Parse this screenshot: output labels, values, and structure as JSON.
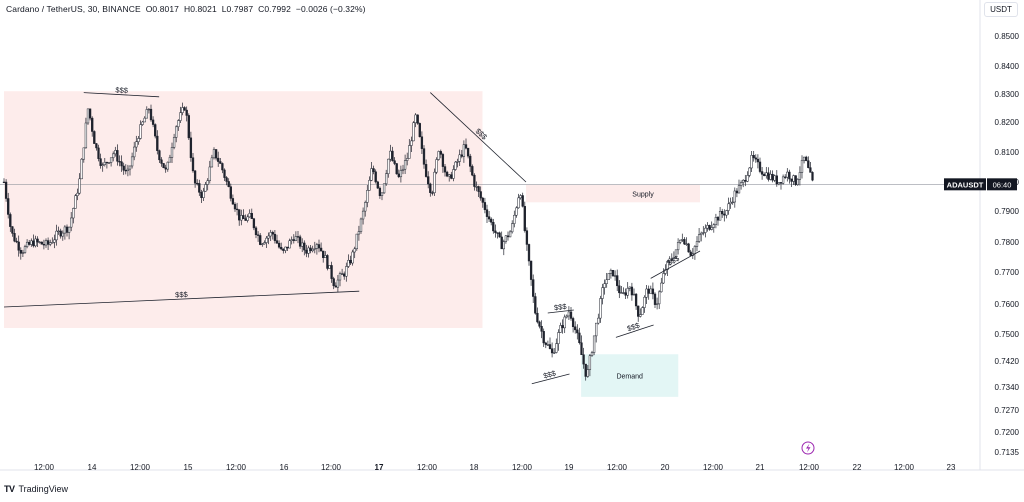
{
  "header": {
    "symbol": "Cardano / TetherUS, 30, BINANCE",
    "open": "O0.8017",
    "high": "H0.8021",
    "low": "L0.7987",
    "close": "C0.7992",
    "change": "−0.0026 (−0.32%)"
  },
  "unit_button": "USDT",
  "brand": {
    "logo": "TV",
    "name": "TradingView"
  },
  "price_tag": {
    "symbol": "ADAUSDT",
    "time": "06:40",
    "price": 0.7992
  },
  "chart_data": {
    "type": "candlestick",
    "ylim": [
      0.7135,
      0.85
    ],
    "y_ticks": [
      "0.8500",
      "0.8400",
      "0.8300",
      "0.8200",
      "0.8100",
      "0.8000",
      "0.7900",
      "0.7800",
      "0.7700",
      "0.7600",
      "0.7500",
      "0.7420",
      "0.7340",
      "0.7270",
      "0.7200",
      "0.7135"
    ],
    "x_ticks": [
      "12:00",
      "14",
      "12:00",
      "15",
      "12:00",
      "16",
      "12:00",
      "17",
      "12:00",
      "18",
      "12:00",
      "19",
      "12:00",
      "20",
      "12:00",
      "21",
      "12:00",
      "22",
      "12:00",
      "23"
    ],
    "bold_x_ticks": [
      "17"
    ],
    "price_path": [
      [
        0,
        0.8
      ],
      [
        5,
        0.783
      ],
      [
        12,
        0.777
      ],
      [
        20,
        0.78
      ],
      [
        30,
        0.779
      ],
      [
        38,
        0.783
      ],
      [
        45,
        0.785
      ],
      [
        52,
        0.8
      ],
      [
        58,
        0.825
      ],
      [
        63,
        0.812
      ],
      [
        68,
        0.805
      ],
      [
        76,
        0.81
      ],
      [
        85,
        0.802
      ],
      [
        92,
        0.815
      ],
      [
        100,
        0.825
      ],
      [
        106,
        0.81
      ],
      [
        112,
        0.803
      ],
      [
        118,
        0.818
      ],
      [
        125,
        0.826
      ],
      [
        131,
        0.8
      ],
      [
        137,
        0.795
      ],
      [
        145,
        0.81
      ],
      [
        150,
        0.805
      ],
      [
        157,
        0.795
      ],
      [
        163,
        0.787
      ],
      [
        170,
        0.788
      ],
      [
        177,
        0.78
      ],
      [
        185,
        0.783
      ],
      [
        192,
        0.776
      ],
      [
        200,
        0.782
      ],
      [
        208,
        0.777
      ],
      [
        216,
        0.78
      ],
      [
        222,
        0.774
      ],
      [
        228,
        0.766
      ],
      [
        235,
        0.77
      ],
      [
        240,
        0.775
      ],
      [
        248,
        0.79
      ],
      [
        254,
        0.805
      ],
      [
        260,
        0.795
      ],
      [
        266,
        0.81
      ],
      [
        272,
        0.801
      ],
      [
        278,
        0.808
      ],
      [
        284,
        0.822
      ],
      [
        290,
        0.805
      ],
      [
        295,
        0.796
      ],
      [
        300,
        0.812
      ],
      [
        306,
        0.8
      ],
      [
        312,
        0.806
      ],
      [
        318,
        0.812
      ],
      [
        324,
        0.8
      ],
      [
        330,
        0.793
      ],
      [
        336,
        0.786
      ],
      [
        343,
        0.779
      ],
      [
        350,
        0.784
      ],
      [
        356,
        0.798
      ],
      [
        360,
        0.78
      ],
      [
        366,
        0.758
      ],
      [
        372,
        0.749
      ],
      [
        378,
        0.744
      ],
      [
        384,
        0.752
      ],
      [
        390,
        0.758
      ],
      [
        396,
        0.748
      ],
      [
        402,
        0.737
      ],
      [
        408,
        0.752
      ],
      [
        414,
        0.767
      ],
      [
        420,
        0.77
      ],
      [
        426,
        0.762
      ],
      [
        432,
        0.766
      ],
      [
        438,
        0.756
      ],
      [
        444,
        0.765
      ],
      [
        450,
        0.76
      ],
      [
        456,
        0.771
      ],
      [
        462,
        0.776
      ],
      [
        468,
        0.782
      ],
      [
        474,
        0.776
      ],
      [
        480,
        0.782
      ],
      [
        486,
        0.785
      ],
      [
        492,
        0.788
      ],
      [
        498,
        0.79
      ],
      [
        504,
        0.796
      ],
      [
        510,
        0.8
      ],
      [
        516,
        0.808
      ],
      [
        522,
        0.804
      ],
      [
        528,
        0.802
      ],
      [
        534,
        0.8
      ],
      [
        540,
        0.803
      ],
      [
        546,
        0.8
      ],
      [
        552,
        0.808
      ],
      [
        558,
        0.799
      ]
    ],
    "zones": [
      {
        "name": "range-zone",
        "x_from": 0,
        "x_to": 330,
        "y_top": 0.831,
        "y_bottom": 0.752,
        "color": "#fdeceb",
        "label": ""
      },
      {
        "name": "supply-zone",
        "x_from": 360,
        "x_to": 480,
        "y_top": 0.799,
        "y_bottom": 0.793,
        "color": "#fdeceb",
        "label": "Supply"
      },
      {
        "name": "demand-zone",
        "x_from": 398,
        "x_to": 465,
        "y_top": 0.744,
        "y_bottom": 0.731,
        "color": "#e3f6f5",
        "label": "Demand"
      }
    ],
    "trendlines": [
      {
        "name": "lower-range-liquidity-line",
        "x1": 0,
        "y1": 0.759,
        "x2": 245,
        "y2": 0.764,
        "label": "$$$"
      },
      {
        "name": "top-liquidity-line",
        "x1": 55,
        "y1": 0.8305,
        "x2": 107,
        "y2": 0.829,
        "label": "$$$"
      },
      {
        "name": "descending-liquidity-line",
        "x1": 294,
        "y1": 0.8305,
        "x2": 360,
        "y2": 0.8,
        "label": "$$$"
      },
      {
        "name": "pocket-liquidity-top",
        "x1": 375,
        "y1": 0.757,
        "x2": 393,
        "y2": 0.758,
        "label": "$$$"
      },
      {
        "name": "pocket-liquidity-bottom",
        "x1": 364,
        "y1": 0.735,
        "x2": 390,
        "y2": 0.738,
        "label": "$$$"
      },
      {
        "name": "ascending-liquidity-lower",
        "x1": 422,
        "y1": 0.749,
        "x2": 448,
        "y2": 0.753,
        "label": "$$$"
      },
      {
        "name": "ascending-liquidity-upper",
        "x1": 446,
        "y1": 0.768,
        "x2": 480,
        "y2": 0.777,
        "label": "$$$"
      }
    ],
    "current_price_line": 0.7992
  }
}
